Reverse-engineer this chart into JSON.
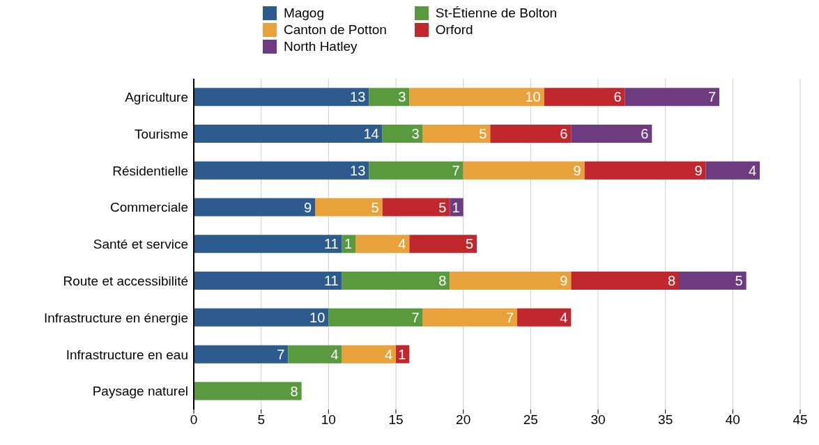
{
  "chart_data": {
    "type": "bar",
    "orientation": "horizontal",
    "stacked": true,
    "data_labels": true,
    "grid": "x",
    "legend": "top",
    "categories": [
      "Agriculture",
      "Tourisme",
      "Résidentielle",
      "Commerciale",
      "Santé et service",
      "Route et accessibilité",
      "Infrastructure en énergie",
      "Infrastructure en eau",
      "Paysage naturel"
    ],
    "series": [
      {
        "name": "Magog",
        "color": "#2d5b8e",
        "values": [
          13,
          14,
          13,
          9,
          11,
          11,
          10,
          7,
          null
        ]
      },
      {
        "name": "St-Étienne de Bolton",
        "color": "#5a9a3e",
        "values": [
          3,
          3,
          7,
          null,
          1,
          8,
          7,
          4,
          8
        ]
      },
      {
        "name": "Canton de Potton",
        "color": "#e9a23b",
        "values": [
          10,
          5,
          9,
          5,
          4,
          9,
          7,
          4,
          null
        ]
      },
      {
        "name": "Orford",
        "color": "#c0282d",
        "values": [
          6,
          6,
          9,
          5,
          5,
          8,
          4,
          1,
          null
        ]
      },
      {
        "name": "North Hatley",
        "color": "#6e3a80",
        "values": [
          7,
          6,
          4,
          1,
          null,
          5,
          null,
          null,
          null
        ]
      }
    ],
    "xlim": [
      0,
      45
    ],
    "xticks": [
      0,
      5,
      10,
      15,
      20,
      25,
      30,
      35,
      40,
      45
    ]
  }
}
